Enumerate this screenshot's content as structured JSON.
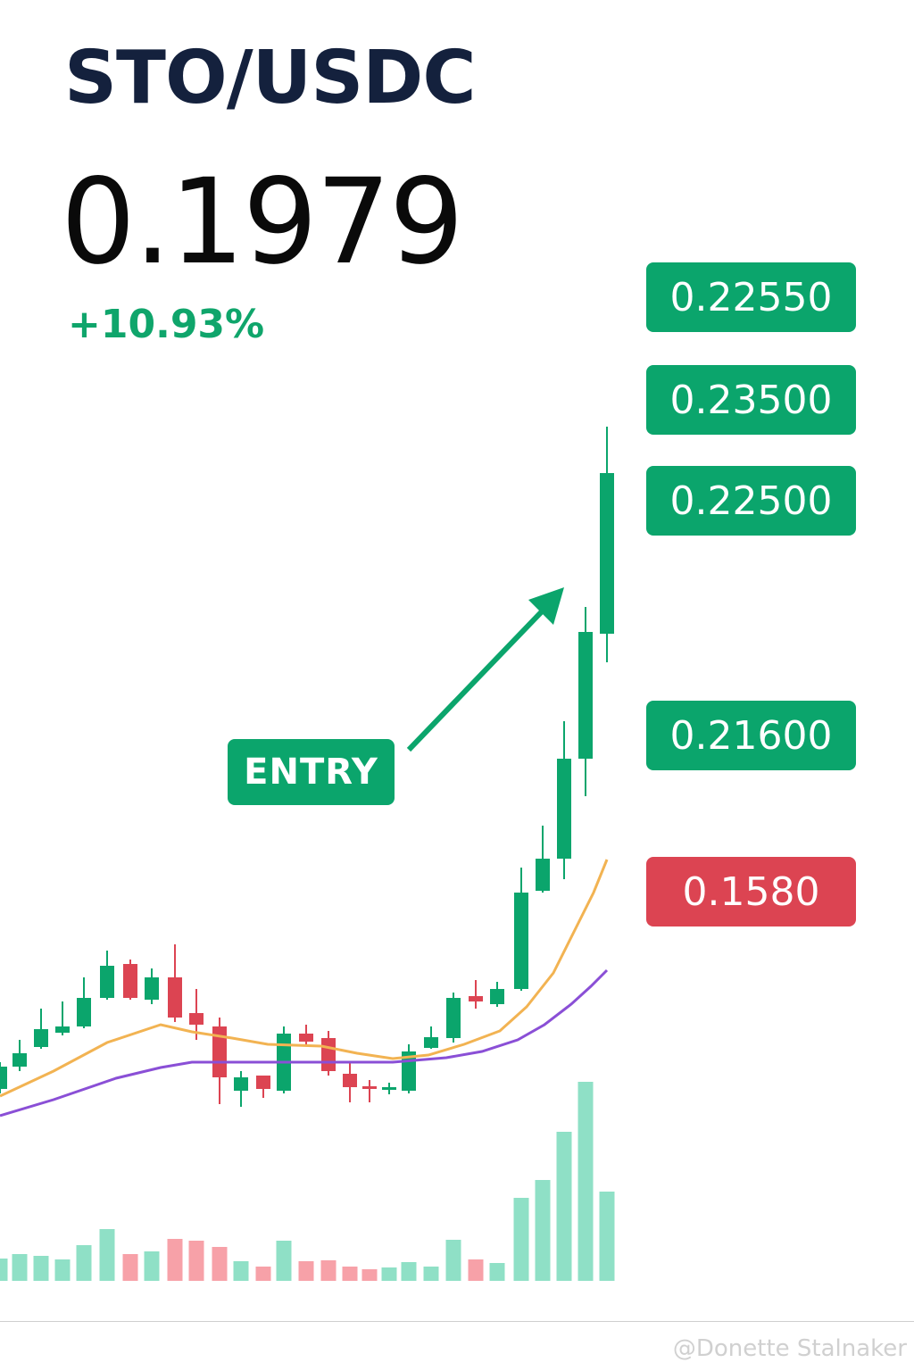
{
  "header": {
    "pair": "STO/USDC",
    "price": "0.1979",
    "change": "+10.93%"
  },
  "targets": [
    "0.22550",
    "0.23500",
    "0.22500",
    "0.21600"
  ],
  "stop": "0.1580",
  "entry_label": "ENTRY",
  "watermark": "@Donette Stalnaker"
}
